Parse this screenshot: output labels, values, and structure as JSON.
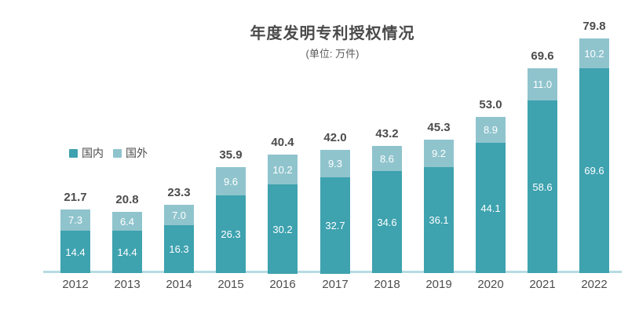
{
  "chart_data": {
    "type": "bar",
    "stacked": true,
    "title": "年度发明专利授权情况",
    "subtitle": "(单位: 万件)",
    "categories": [
      "2012",
      "2013",
      "2014",
      "2015",
      "2016",
      "2017",
      "2018",
      "2019",
      "2020",
      "2021",
      "2022"
    ],
    "series": [
      {
        "name": "国内",
        "color": "#3EA2AF",
        "values": [
          14.4,
          14.4,
          16.3,
          26.3,
          30.2,
          32.7,
          34.6,
          36.1,
          44.1,
          58.6,
          69.6
        ]
      },
      {
        "name": "国外",
        "color": "#8FC4CD",
        "values": [
          7.3,
          6.4,
          7.0,
          9.6,
          10.2,
          9.3,
          8.6,
          9.2,
          8.9,
          11.0,
          10.2
        ]
      }
    ],
    "totals": [
      21.7,
      20.8,
      23.3,
      35.9,
      40.4,
      42.0,
      43.2,
      45.3,
      53.0,
      69.6,
      79.8
    ],
    "value_decimals": 1,
    "legend_position": "left-middle",
    "grid": "off",
    "axis_line_color": "#B6DCE1",
    "label_color_inside": "#FFFFFF",
    "label_color_total": "#4C4C4C",
    "ylim": [
      0,
      80
    ]
  }
}
